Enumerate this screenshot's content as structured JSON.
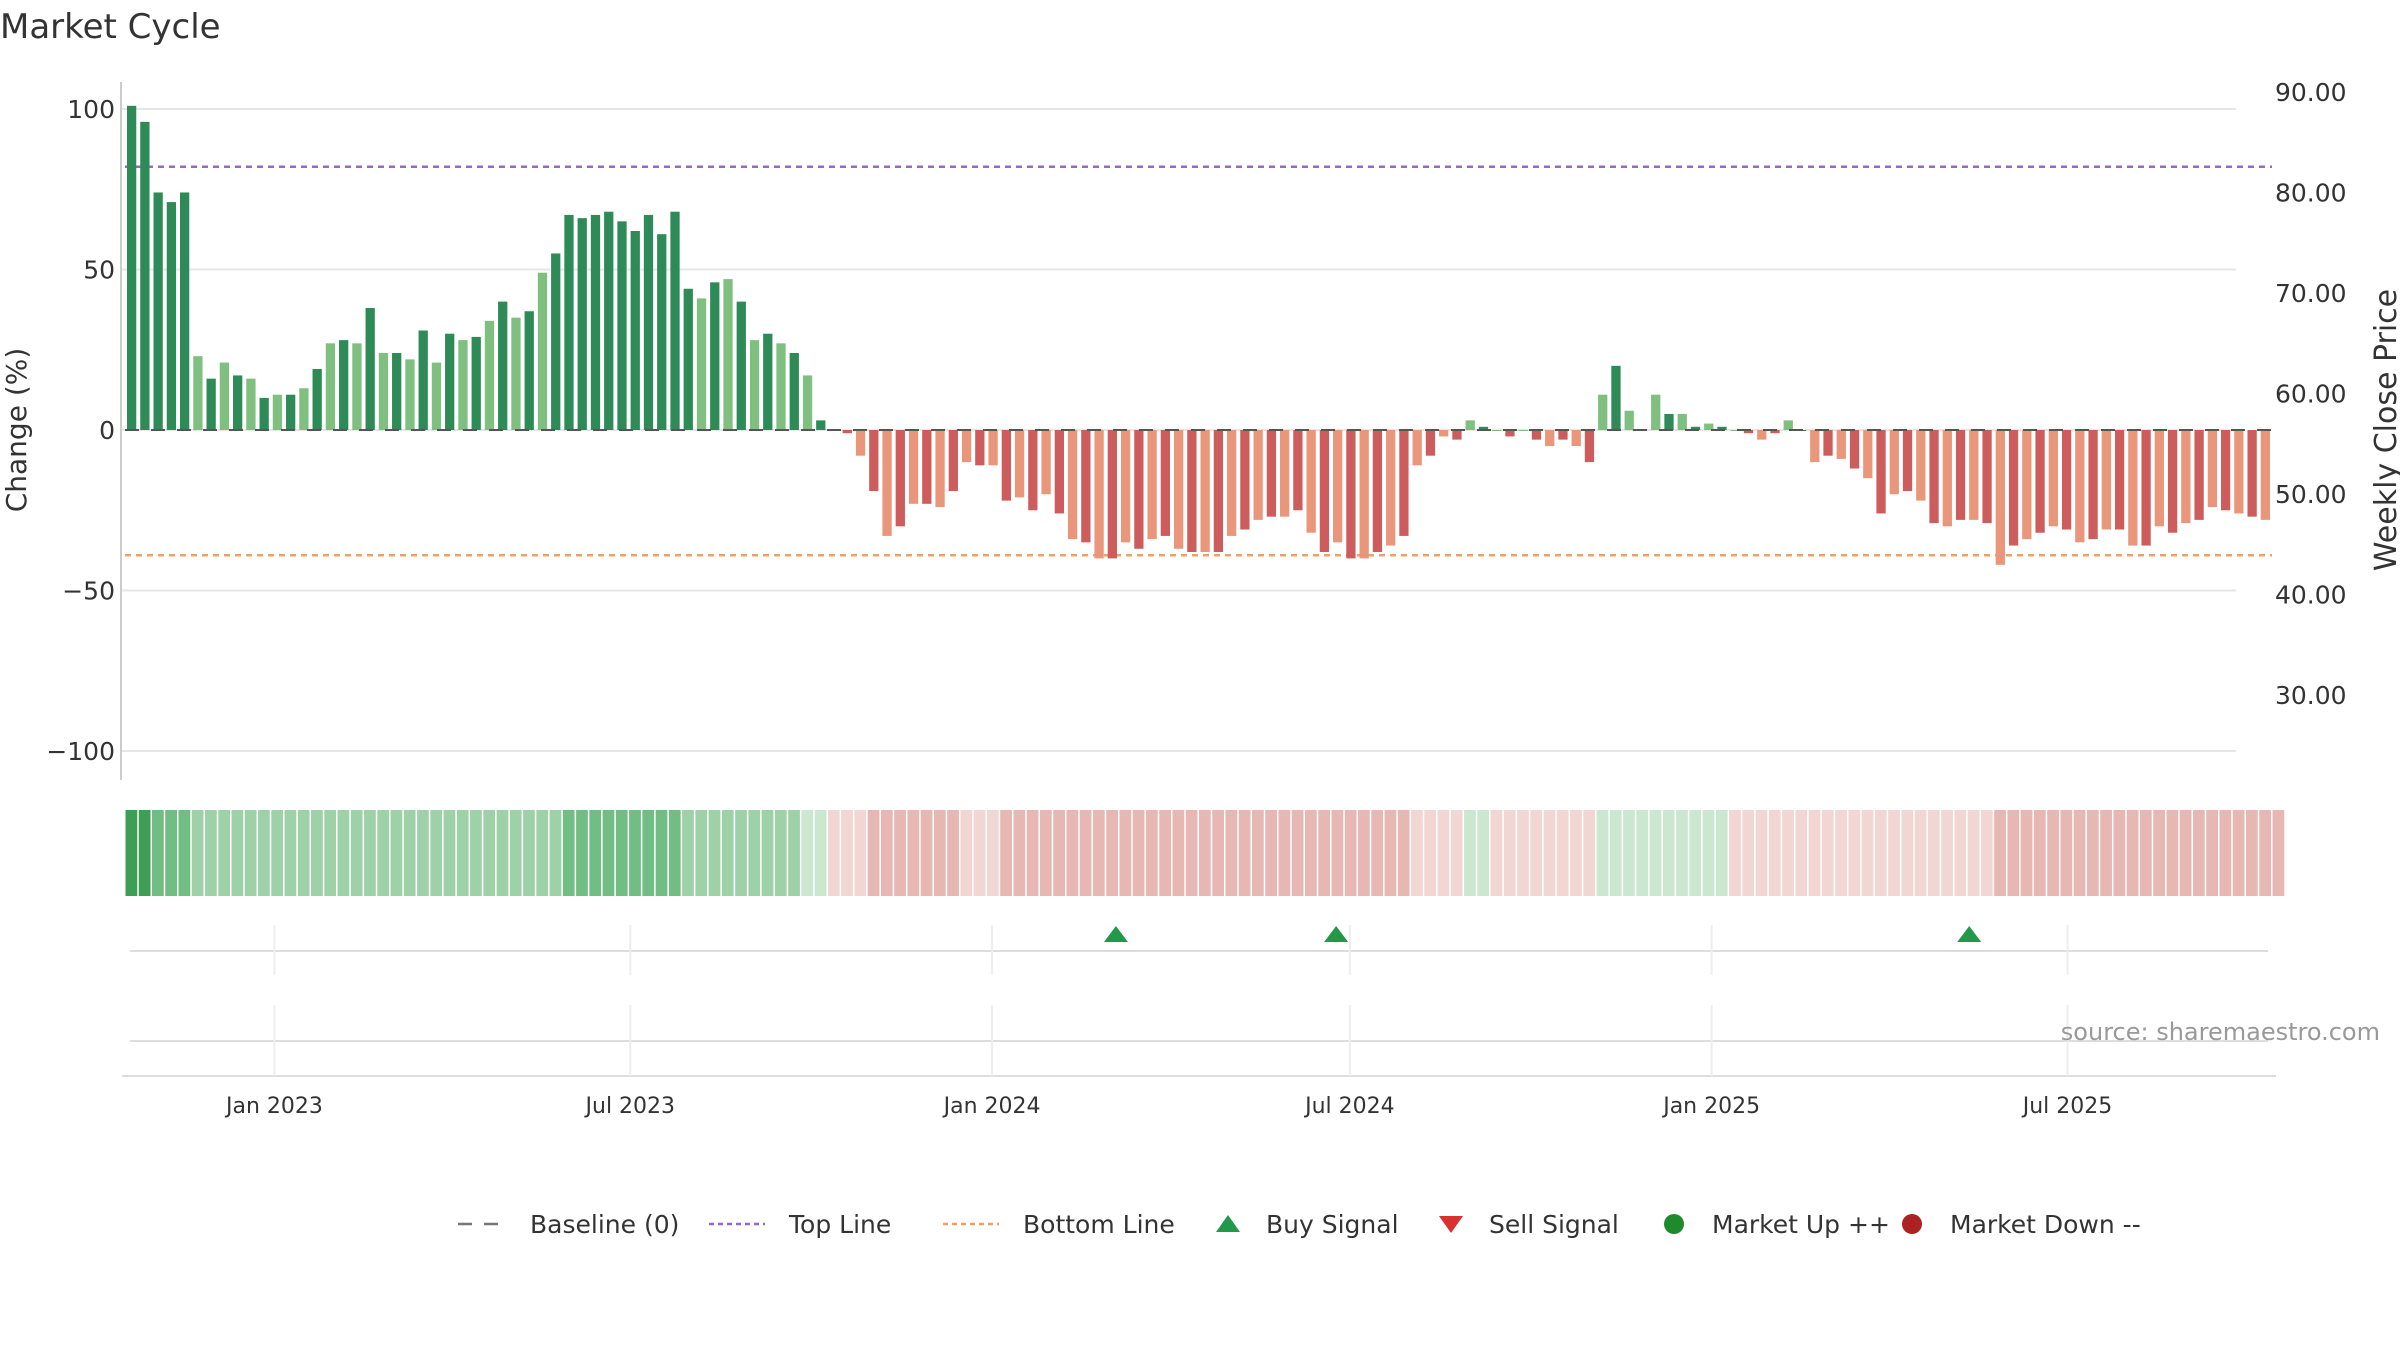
{
  "chart_data": {
    "type": "bar",
    "title": "Market Cycle",
    "ylabel": "Change (%)",
    "y2label": "Weekly Close Price",
    "ylim": [
      -105,
      105
    ],
    "y2lim": [
      23.3,
      91.4
    ],
    "y_ticks": [
      100,
      50,
      0,
      -50,
      -100
    ],
    "y_tick_labels": [
      "100",
      "50",
      "0",
      "−50",
      "−100"
    ],
    "y2_ticks": [
      90,
      80,
      70,
      60,
      50,
      40,
      30
    ],
    "y2_tick_labels": [
      "90.00",
      "80.00",
      "70.00",
      "60.00",
      "50.00",
      "40.00",
      "30.00"
    ],
    "x_start": "2022-10-17",
    "x_end": "2025-10-13",
    "x_ticks": [
      {
        "date": "2023-01-01",
        "label": "Jan 2023"
      },
      {
        "date": "2023-07-01",
        "label": "Jul 2023"
      },
      {
        "date": "2024-01-01",
        "label": "Jan 2024"
      },
      {
        "date": "2024-07-01",
        "label": "Jul 2024"
      },
      {
        "date": "2025-01-01",
        "label": "Jan 2025"
      },
      {
        "date": "2025-07-01",
        "label": "Jul 2025"
      }
    ],
    "top_line": 82,
    "bottom_line": -39,
    "grid": true,
    "legend_position": "bottom",
    "values": [
      101,
      96,
      74,
      71,
      74,
      23,
      16,
      21,
      17,
      16,
      10,
      11,
      11,
      13,
      19,
      27,
      28,
      27,
      38,
      24,
      24,
      22,
      31,
      21,
      30,
      28,
      29,
      34,
      40,
      35,
      37,
      49,
      55,
      67,
      66,
      67,
      68,
      65,
      62,
      67,
      61,
      68,
      44,
      41,
      46,
      47,
      40,
      28,
      30,
      27,
      24,
      17,
      3,
      0,
      -1,
      -8,
      -19,
      -33,
      -30,
      -23,
      -23,
      -24,
      -19,
      -10,
      -11,
      -11,
      -22,
      -21,
      -25,
      -20,
      -26,
      -34,
      -35,
      -40,
      -40,
      -35,
      -37,
      -34,
      -33,
      -37,
      -38,
      -38,
      -38,
      -33,
      -31,
      -28,
      -27,
      -27,
      -25,
      -32,
      -38,
      -35,
      -40,
      -40,
      -38,
      -36,
      -33,
      -11,
      -8,
      -2,
      -3,
      3,
      1,
      0,
      -2,
      0,
      -3,
      -5,
      -3,
      -5,
      -10,
      11,
      20,
      6,
      0,
      11,
      5,
      5,
      1,
      2,
      1,
      0,
      -1,
      -3,
      -1,
      3,
      0,
      -10,
      -8,
      -9,
      -12,
      -15,
      -26,
      -20,
      -19,
      -22,
      -29,
      -30,
      -28,
      -28,
      -29,
      -42,
      -36,
      -34,
      -32,
      -30,
      -31,
      -35,
      -34,
      -31,
      -31,
      -36,
      -36,
      -30,
      -32,
      -29,
      -28,
      -24,
      -25,
      -26,
      -27,
      -28
    ],
    "band_strength": [
      4,
      4,
      3,
      3,
      3,
      2,
      2,
      2,
      2,
      2,
      2,
      2,
      2,
      2,
      2,
      2,
      2,
      2,
      2,
      2,
      2,
      2,
      2,
      2,
      2,
      2,
      2,
      2,
      2,
      2,
      2,
      2,
      2,
      3,
      3,
      3,
      3,
      3,
      3,
      3,
      3,
      3,
      2,
      2,
      2,
      2,
      2,
      2,
      2,
      2,
      2,
      1,
      1,
      -1,
      -1,
      -1,
      -2,
      -2,
      -2,
      -2,
      -2,
      -2,
      -2,
      -1,
      -1,
      -1,
      -2,
      -2,
      -2,
      -2,
      -2,
      -2,
      -2,
      -2,
      -2,
      -2,
      -2,
      -2,
      -2,
      -2,
      -2,
      -2,
      -2,
      -2,
      -2,
      -2,
      -2,
      -2,
      -2,
      -2,
      -2,
      -2,
      -2,
      -2,
      -2,
      -2,
      -2,
      -1,
      -1,
      -1,
      -1,
      1,
      1,
      -1,
      -1,
      -1,
      -1,
      -1,
      -1,
      -1,
      -1,
      1,
      1,
      1,
      1,
      1,
      1,
      1,
      1,
      1,
      1,
      -1,
      -1,
      -1,
      -1,
      -1,
      -1,
      -1,
      -1,
      -1,
      -1,
      -1,
      -1,
      -1,
      -1,
      -1,
      -1,
      -1,
      -1,
      -1,
      -1,
      -2,
      -2,
      -2,
      -2,
      -2,
      -2,
      -2,
      -2,
      -2,
      -2,
      -2,
      -2,
      -2,
      -2,
      -2,
      -2,
      -2,
      -2,
      -2,
      -2,
      -2,
      -2
    ],
    "buy_signals": [
      "2024-03-04",
      "2024-06-24",
      "2025-05-12"
    ],
    "sell_signals": []
  },
  "source_text": "source: sharemaestro.com",
  "legend": [
    {
      "label": "Baseline (0)",
      "symbol": "dashed-line",
      "color": "#777777"
    },
    {
      "label": "Top Line",
      "symbol": "dotted-line",
      "color": "#9966cc"
    },
    {
      "label": "Bottom Line",
      "symbol": "dotted-line",
      "color": "#f0a060"
    },
    {
      "label": "Buy Signal",
      "symbol": "triangle-up",
      "color": "#22994a"
    },
    {
      "label": "Sell Signal",
      "symbol": "triangle-down",
      "color": "#d93030"
    },
    {
      "label": "Market Up ++",
      "symbol": "circle",
      "color": "#1f8a2c"
    },
    {
      "label": "Market Down --",
      "symbol": "circle",
      "color": "#aa2222"
    }
  ],
  "colors": {
    "bar_up_strong": "#2e8b57",
    "bar_up_weak": "#7fbf7f",
    "bar_down_strong": "#cd5c5c",
    "bar_down_weak": "#e9967a",
    "top_line": "#9966cc",
    "bottom_line": "#f0a060",
    "buy": "#22994a",
    "sell": "#d93030"
  }
}
